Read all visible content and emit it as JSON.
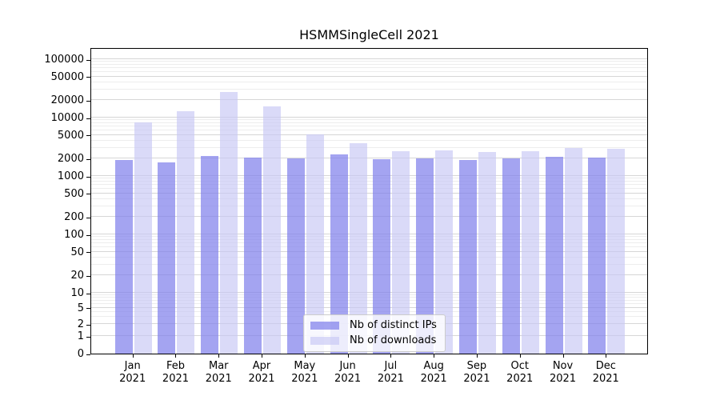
{
  "title": "HSMMSingleCell 2021",
  "chart_data": {
    "type": "bar",
    "title": "HSMMSingleCell 2021",
    "xlabel": "",
    "ylabel": "",
    "yscale": "symlog",
    "grid": true,
    "legend_position": "lower center",
    "ylim": [
      0,
      150000
    ],
    "yticks": [
      0,
      1,
      2,
      5,
      10,
      20,
      50,
      100,
      200,
      500,
      1000,
      2000,
      5000,
      10000,
      20000,
      50000,
      100000
    ],
    "categories": [
      {
        "month": "Jan",
        "year": "2021"
      },
      {
        "month": "Feb",
        "year": "2021"
      },
      {
        "month": "Mar",
        "year": "2021"
      },
      {
        "month": "Apr",
        "year": "2021"
      },
      {
        "month": "May",
        "year": "2021"
      },
      {
        "month": "Jun",
        "year": "2021"
      },
      {
        "month": "Jul",
        "year": "2021"
      },
      {
        "month": "Aug",
        "year": "2021"
      },
      {
        "month": "Sep",
        "year": "2021"
      },
      {
        "month": "Oct",
        "year": "2021"
      },
      {
        "month": "Nov",
        "year": "2021"
      },
      {
        "month": "Dec",
        "year": "2021"
      }
    ],
    "series": [
      {
        "name": "Nb of distinct IPs",
        "color": "#7e7eeb",
        "opacity": 0.7,
        "rendered_color": "#a5a5f0",
        "values": [
          1900,
          1730,
          2200,
          2040,
          2000,
          2340,
          1960,
          2000,
          1860,
          2000,
          2150,
          2040
        ]
      },
      {
        "name": "Nb of downloads",
        "color": "#c6c6f4",
        "opacity": 0.65,
        "rendered_color": "#dadaf8",
        "values": [
          8400,
          12900,
          27500,
          15400,
          5100,
          3650,
          2650,
          2750,
          2600,
          2650,
          3050,
          2900
        ]
      }
    ],
    "colors": {
      "axis": "#000000",
      "grid_major": "#d6d6d6",
      "grid_minor": "#ededed",
      "background": "#ffffff",
      "legend_border": "#cccccc"
    }
  }
}
